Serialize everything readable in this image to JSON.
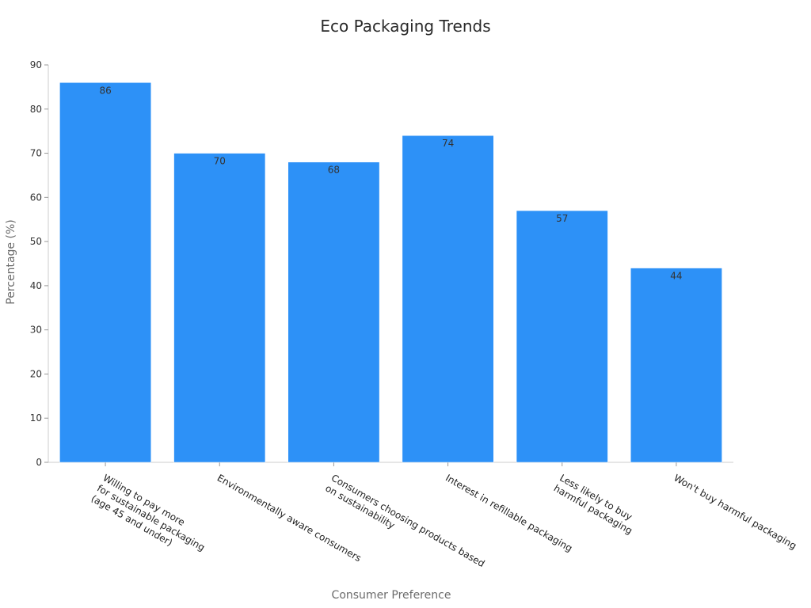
{
  "chart_data": {
    "type": "bar",
    "title": "Eco Packaging Trends",
    "xlabel": "Consumer Preference",
    "ylabel": "Percentage (%)",
    "ylim": [
      0,
      90
    ],
    "yticks": [
      0,
      10,
      20,
      30,
      40,
      50,
      60,
      70,
      80,
      90
    ],
    "categories": [
      [
        "Willing to pay more",
        "for sustainable packaging",
        "(age 45 and under)"
      ],
      [
        "Environmentally aware consumers"
      ],
      [
        "Consumers choosing products based",
        "on sustainability"
      ],
      [
        "Interest in refillable packaging"
      ],
      [
        "Less likely to buy",
        "harmful packaging"
      ],
      [
        "Won't buy harmful packaging"
      ]
    ],
    "values": [
      86,
      70,
      68,
      74,
      57,
      44
    ],
    "bar_color": "#2d91f7",
    "grid": false,
    "legend": "none"
  }
}
